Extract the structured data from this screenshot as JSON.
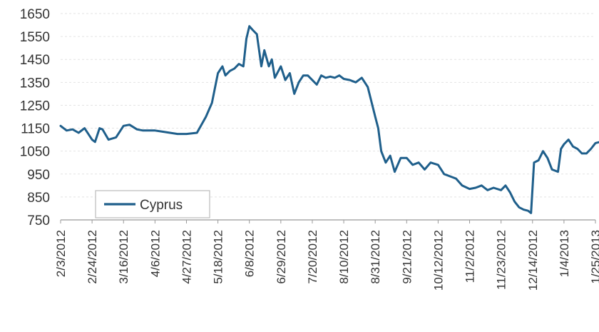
{
  "chart_data": {
    "type": "line",
    "title": "",
    "xlabel": "",
    "ylabel": "",
    "ylim": [
      750,
      1650
    ],
    "yticks": [
      750,
      850,
      950,
      1050,
      1150,
      1250,
      1350,
      1450,
      1550,
      1650
    ],
    "xticks": [
      "2/3/2012",
      "2/24/2012",
      "3/16/2012",
      "4/6/2012",
      "4/27/2012",
      "5/18/2012",
      "6/8/2012",
      "6/29/2012",
      "7/20/2012",
      "8/10/2012",
      "8/31/2012",
      "9/21/2012",
      "10/12/2012",
      "11/2/2012",
      "11/23/2012",
      "12/14/2012",
      "1/4/2013",
      "1/25/2013"
    ],
    "grid": true,
    "legend_position": "bottom-left",
    "colors": {
      "series": "#1f5f8b",
      "grid": "#e3e3e3",
      "axis": "#999999"
    },
    "series": [
      {
        "name": "Cyprus",
        "x": [
          "2/3/2012",
          "2/7/2012",
          "2/11/2012",
          "2/15/2012",
          "2/19/2012",
          "2/24/2012",
          "2/26/2012",
          "2/29/2012",
          "3/2/2012",
          "3/6/2012",
          "3/11/2012",
          "3/16/2012",
          "3/20/2012",
          "3/25/2012",
          "3/29/2012",
          "4/1/2012",
          "4/6/2012",
          "4/11/2012",
          "4/16/2012",
          "4/21/2012",
          "4/27/2012",
          "5/4/2012",
          "5/10/2012",
          "5/14/2012",
          "5/18/2012",
          "5/21/2012",
          "5/23/2012",
          "5/26/2012",
          "5/29/2012",
          "6/1/2012",
          "6/4/2012",
          "6/6/2012",
          "6/8/2012",
          "6/10/2012",
          "6/13/2012",
          "6/16/2012",
          "6/18/2012",
          "6/21/2012",
          "6/23/2012",
          "6/25/2012",
          "6/29/2012",
          "7/2/2012",
          "7/5/2012",
          "7/8/2012",
          "7/11/2012",
          "7/14/2012",
          "7/17/2012",
          "7/20/2012",
          "7/23/2012",
          "7/26/2012",
          "7/29/2012",
          "8/1/2012",
          "8/4/2012",
          "8/7/2012",
          "8/10/2012",
          "8/14/2012",
          "8/18/2012",
          "8/22/2012",
          "8/26/2012",
          "8/31/2012",
          "9/2/2012",
          "9/4/2012",
          "9/7/2012",
          "9/10/2012",
          "9/13/2012",
          "9/17/2012",
          "9/21/2012",
          "9/25/2012",
          "9/29/2012",
          "10/3/2012",
          "10/7/2012",
          "10/12/2012",
          "10/16/2012",
          "10/20/2012",
          "10/24/2012",
          "10/28/2012",
          "11/2/2012",
          "11/6/2012",
          "11/10/2012",
          "11/14/2012",
          "11/18/2012",
          "11/23/2012",
          "11/26/2012",
          "11/29/2012",
          "12/2/2012",
          "12/5/2012",
          "12/8/2012",
          "12/11/2012",
          "12/13/2012",
          "12/15/2012",
          "12/18/2012",
          "12/21/2012",
          "12/24/2012",
          "12/27/2012",
          "12/31/2012",
          "1/2/2013",
          "1/4/2013",
          "1/7/2013",
          "1/10/2013",
          "1/13/2013",
          "1/16/2013",
          "1/19/2013",
          "1/22/2013",
          "1/25/2013",
          "1/28/2013"
        ],
        "values": [
          1160,
          1140,
          1145,
          1130,
          1150,
          1100,
          1090,
          1150,
          1145,
          1100,
          1110,
          1160,
          1165,
          1145,
          1140,
          1140,
          1140,
          1135,
          1130,
          1125,
          1125,
          1130,
          1200,
          1260,
          1390,
          1420,
          1380,
          1400,
          1410,
          1430,
          1420,
          1540,
          1595,
          1580,
          1560,
          1420,
          1490,
          1420,
          1450,
          1370,
          1420,
          1360,
          1390,
          1300,
          1350,
          1380,
          1380,
          1360,
          1340,
          1380,
          1370,
          1375,
          1370,
          1380,
          1365,
          1360,
          1350,
          1370,
          1330,
          1200,
          1150,
          1050,
          1000,
          1030,
          960,
          1020,
          1020,
          990,
          1000,
          970,
          1000,
          990,
          950,
          940,
          930,
          900,
          885,
          890,
          900,
          880,
          890,
          880,
          900,
          870,
          830,
          805,
          795,
          790,
          780,
          1000,
          1010,
          1050,
          1020,
          970,
          960,
          1060,
          1080,
          1100,
          1070,
          1060,
          1040,
          1040,
          1060,
          1085,
          1090
        ]
      }
    ]
  }
}
